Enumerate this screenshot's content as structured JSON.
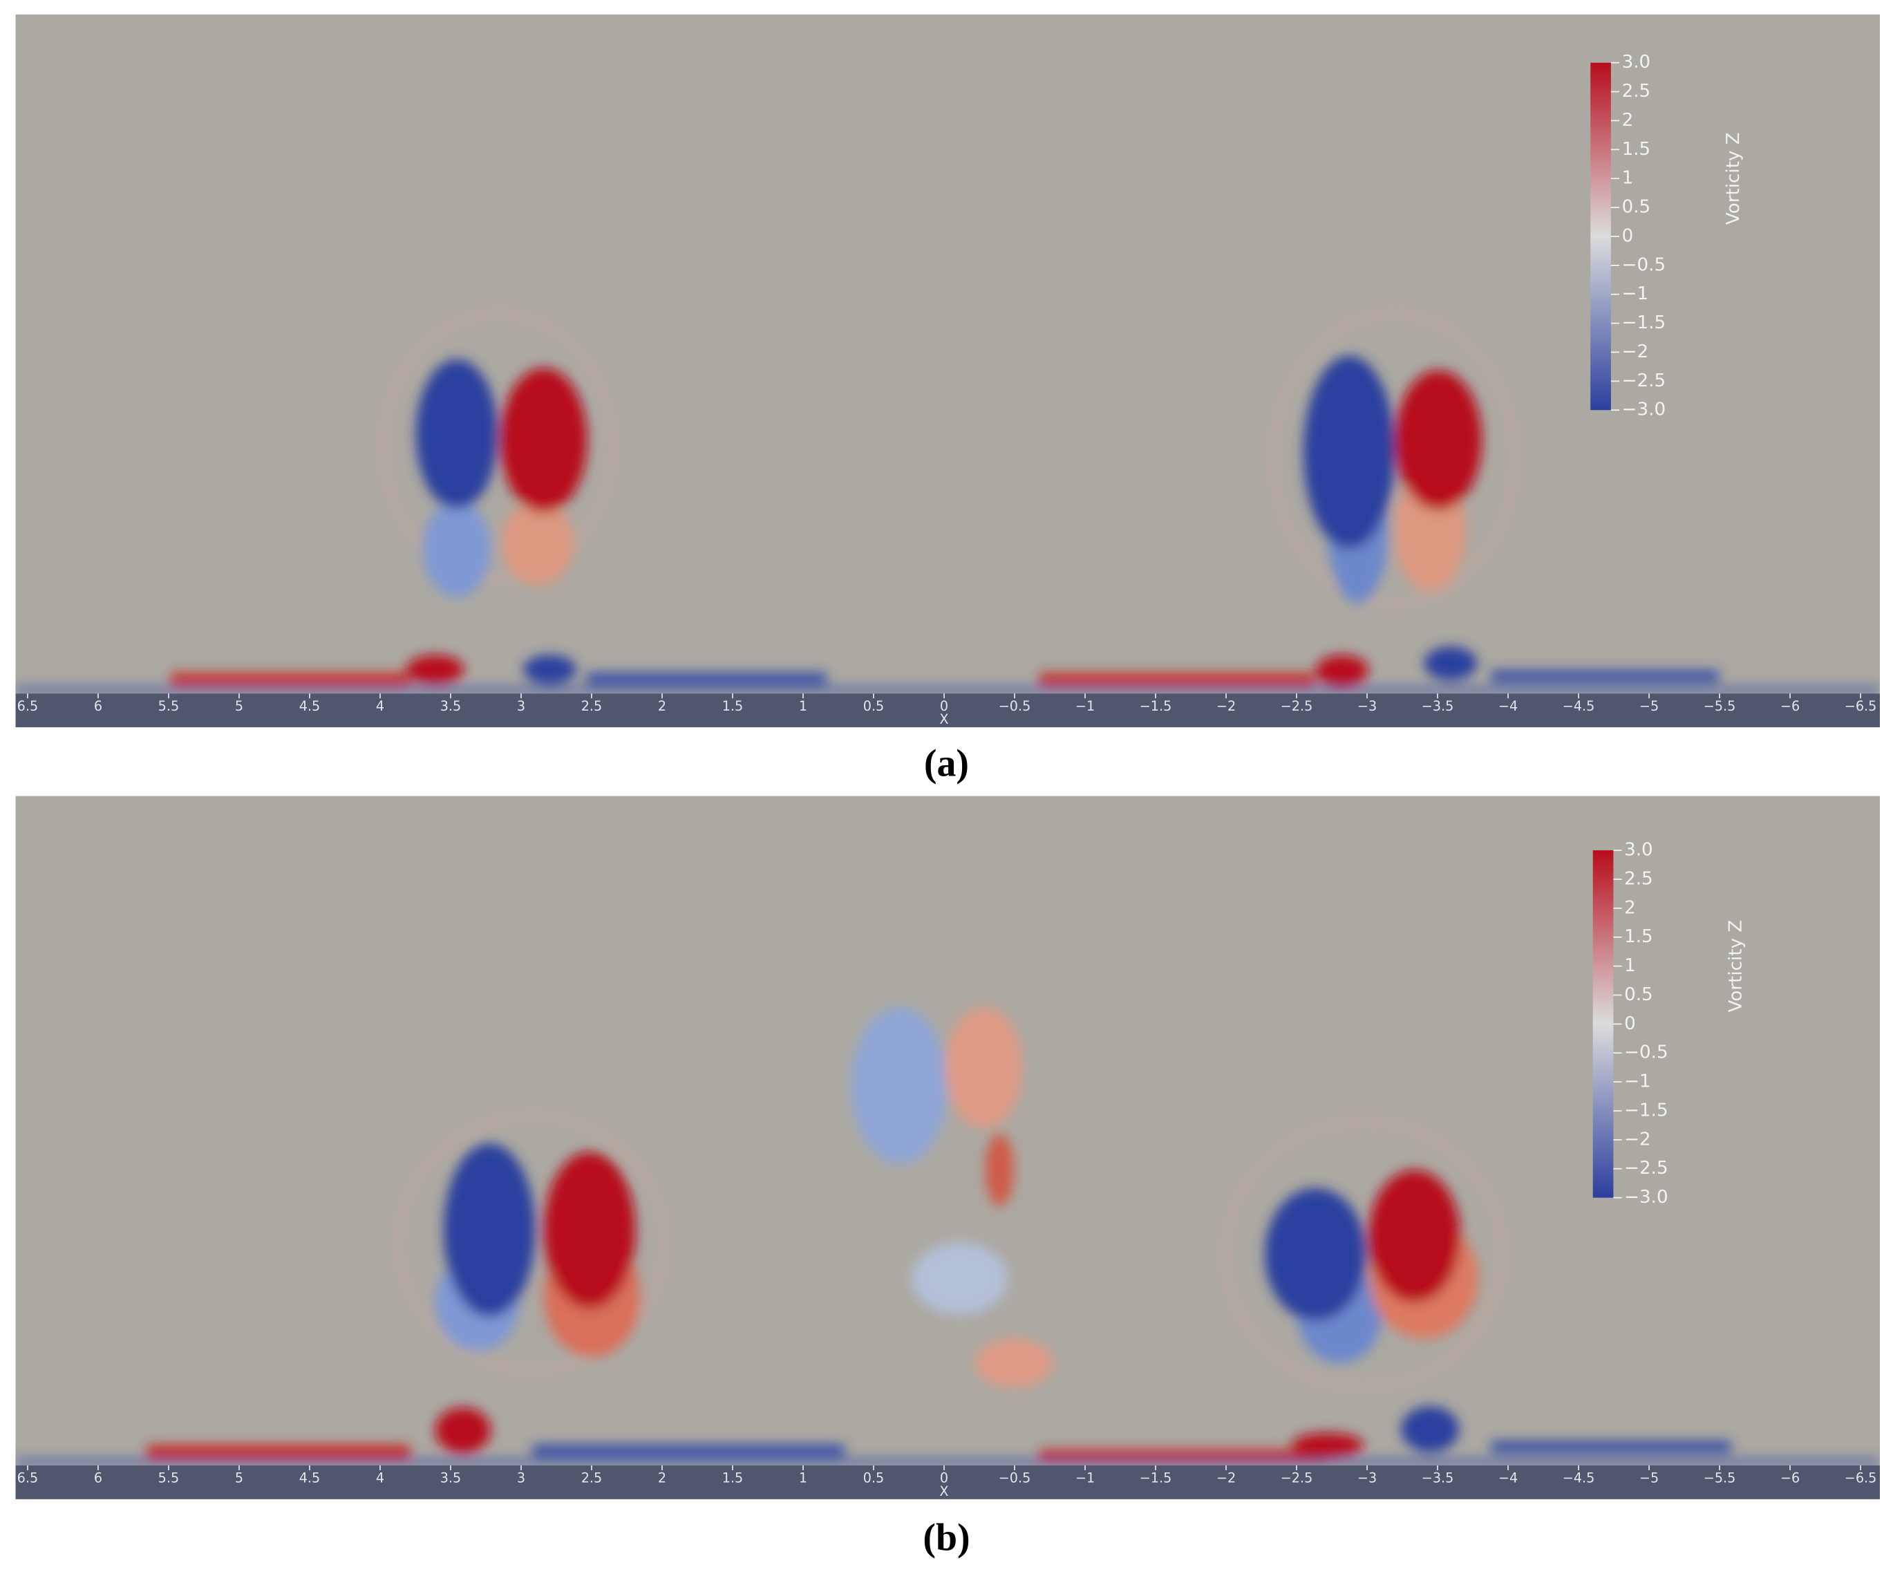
{
  "chart_data": [
    {
      "type": "field",
      "panel_label": "(a)",
      "x_label": "X",
      "background": "#aca9a2",
      "xlim": [
        6.5,
        -6.5
      ],
      "xticks": [
        6.5,
        6,
        5.5,
        5,
        4.5,
        4,
        3.5,
        3,
        2.5,
        2,
        1.5,
        1,
        0.5,
        0,
        {
          "value": -0.5,
          "label": "−0.5"
        },
        {
          "value": -1,
          "label": "−1"
        },
        {
          "value": -1.5,
          "label": "−1.5"
        },
        {
          "value": -2,
          "label": "−2"
        },
        {
          "value": -2.5,
          "label": "−2.5"
        },
        {
          "value": -3,
          "label": "−3"
        },
        {
          "value": -3.5,
          "label": "−3.5"
        },
        {
          "value": -4,
          "label": "−4"
        },
        {
          "value": -4.5,
          "label": "−4.5"
        },
        {
          "value": -5,
          "label": "−5"
        },
        {
          "value": -5.5,
          "label": "−5.5"
        },
        {
          "value": -6,
          "label": "−6"
        },
        {
          "value": -6.5,
          "label": "−6.5"
        }
      ],
      "colorbar": {
        "title": "Vorticity Z",
        "lim": [
          -3,
          3
        ],
        "colors": [
          "#2b3f9e",
          "#dcdcdc",
          "#b70d1c"
        ],
        "ticks": [
          {
            "value": 3,
            "label": "3.0"
          },
          2.5,
          2,
          1.5,
          1,
          0.5,
          0,
          {
            "value": -0.5,
            "label": "−0.5"
          },
          {
            "value": -1,
            "label": "−1"
          },
          {
            "value": -1.5,
            "label": "−1.5"
          },
          {
            "value": -2,
            "label": "−2"
          },
          {
            "value": -2.5,
            "label": "−2.5"
          },
          {
            "value": -3,
            "label": "−3.0"
          }
        ]
      }
    },
    {
      "type": "field",
      "panel_label": "(b)",
      "x_label": "X",
      "background": "#aca9a2",
      "xlim": [
        6.5,
        -6.5
      ],
      "xticks": [
        6.5,
        6,
        5.5,
        5,
        4.5,
        4,
        3.5,
        3,
        2.5,
        2,
        1.5,
        1,
        0.5,
        0,
        {
          "value": -0.5,
          "label": "−0.5"
        },
        {
          "value": -1,
          "label": "−1"
        },
        {
          "value": -1.5,
          "label": "−1.5"
        },
        {
          "value": -2,
          "label": "−2"
        },
        {
          "value": -2.5,
          "label": "−2.5"
        },
        {
          "value": -3,
          "label": "−3"
        },
        {
          "value": -3.5,
          "label": "−3.5"
        },
        {
          "value": -4,
          "label": "−4"
        },
        {
          "value": -4.5,
          "label": "−4.5"
        },
        {
          "value": -5,
          "label": "−5"
        },
        {
          "value": -5.5,
          "label": "−5.5"
        },
        {
          "value": -6,
          "label": "−6"
        },
        {
          "value": -6.5,
          "label": "−6.5"
        }
      ],
      "colorbar": {
        "title": "Vorticity Z",
        "lim": [
          -3,
          3
        ],
        "colors": [
          "#2b3f9e",
          "#dcdcdc",
          "#b70d1c"
        ],
        "ticks": [
          {
            "value": 3,
            "label": "3.0"
          },
          2.5,
          2,
          1.5,
          1,
          0.5,
          0,
          {
            "value": -0.5,
            "label": "−0.5"
          },
          {
            "value": -1,
            "label": "−1"
          },
          {
            "value": -1.5,
            "label": "−1.5"
          },
          {
            "value": -2,
            "label": "−2"
          },
          {
            "value": -2.5,
            "label": "−2.5"
          },
          {
            "value": -3,
            "label": "−3.0"
          }
        ]
      }
    }
  ]
}
